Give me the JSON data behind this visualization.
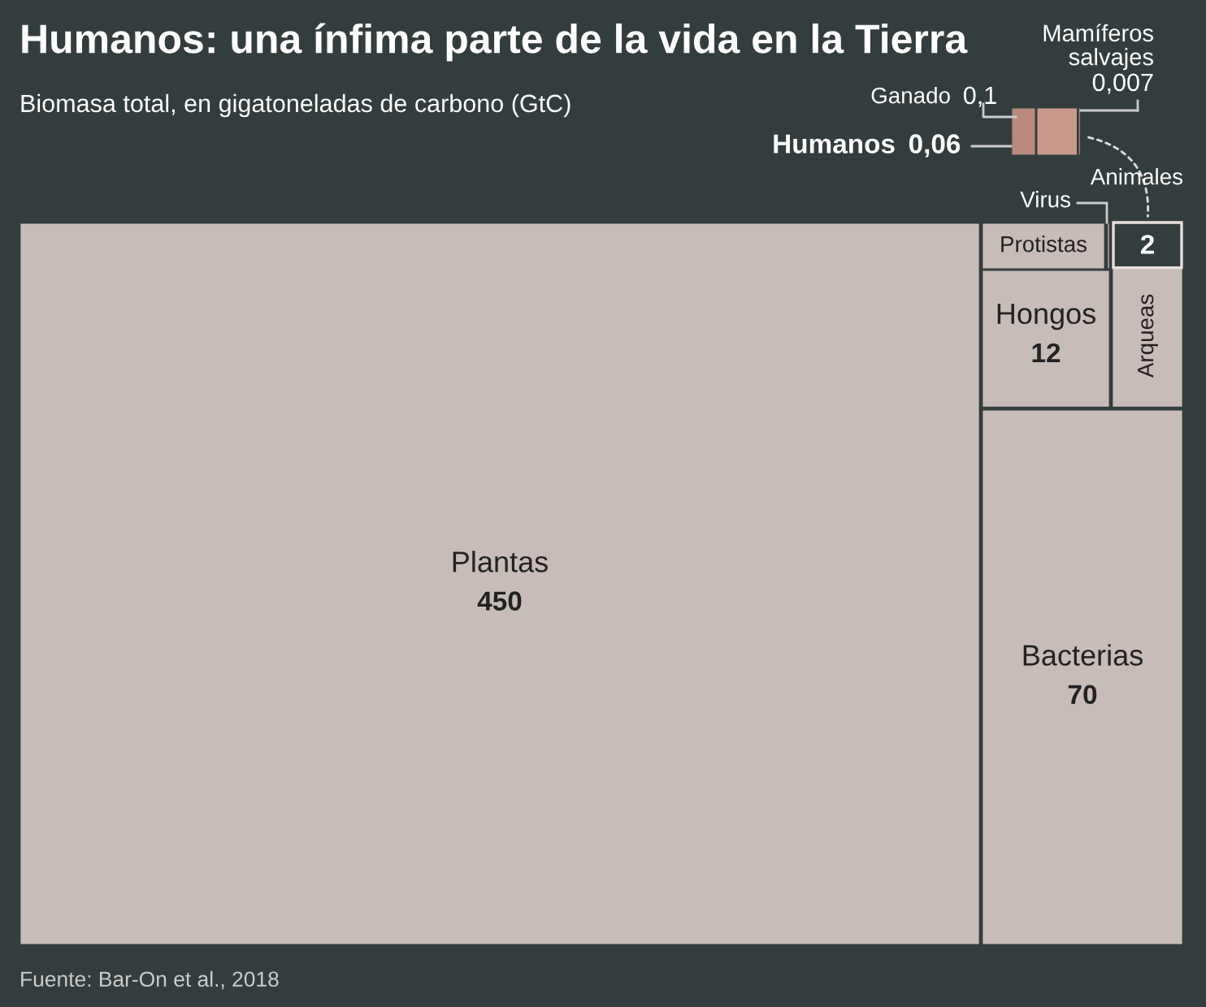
{
  "chart_data": {
    "type": "other",
    "title": "Humanos: una ínfima parte de la vida en la Tierra",
    "subtitle": "Biomasa total, en gigatoneladas de carbono (GtC)",
    "categories": [
      "Plantas",
      "Bacterias",
      "Hongos",
      "Arqueas",
      "Protistas",
      "Virus",
      "Animales",
      "Ganado",
      "Humanos",
      "Mamíferos salvajes"
    ],
    "values": [
      450,
      70,
      12,
      null,
      null,
      null,
      2,
      0.1,
      0.06,
      0.007
    ],
    "value_labels": [
      "450",
      "70",
      "12",
      null,
      null,
      null,
      "2",
      "0,1",
      "0,06",
      "0,007"
    ],
    "colors": [
      "#c8bcb9",
      "#c8bcb9",
      "#c8bcb9",
      "#c8bcb9",
      "#c8bcb9",
      "#c8bcb9",
      "#343d3d",
      "#c99a8c",
      "#b98a7c",
      "#d8aa9c"
    ],
    "annotations": [
      "Fuente: Bar-On et al., 2018"
    ]
  }
}
